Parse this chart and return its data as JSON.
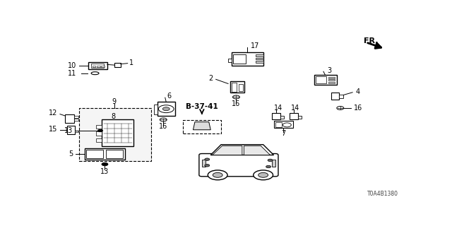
{
  "bg_color": "#ffffff",
  "line_color": "#000000",
  "diagram_code": "T0A4B1380",
  "font_size": 7,
  "fr_label": "FR.",
  "b3741_label": "B-37-41",
  "part_labels": [
    "1",
    "2",
    "3",
    "4",
    "5",
    "6",
    "7",
    "8",
    "9",
    "10",
    "11",
    "12",
    "13",
    "14",
    "15",
    "16",
    "17"
  ],
  "car_body_color": "#ffffff",
  "car_window_color": "#e8e8e8",
  "dash_fill": "#f5f5f5"
}
